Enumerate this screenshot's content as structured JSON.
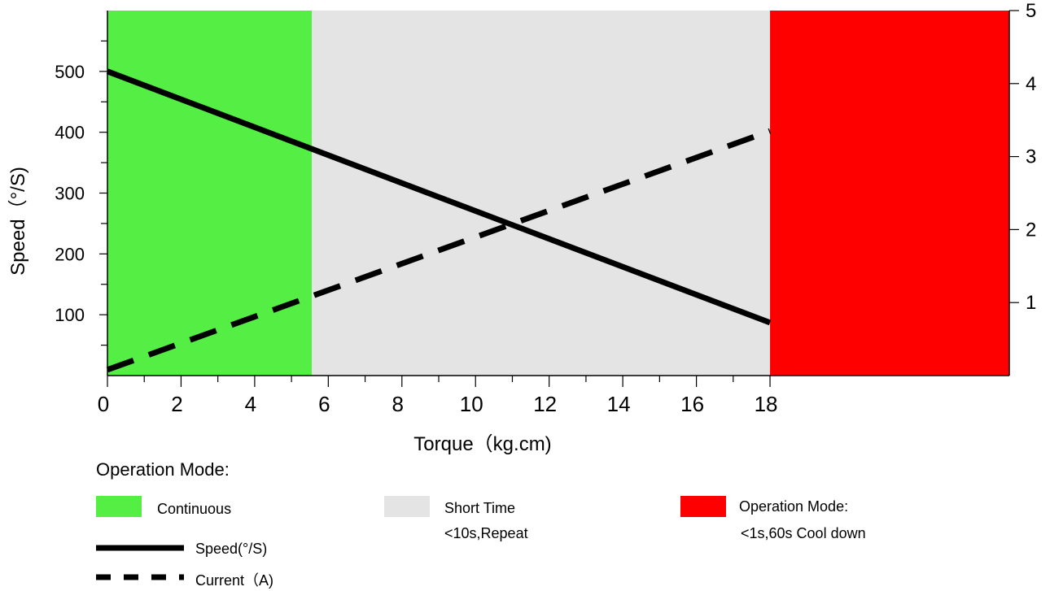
{
  "chart_data": {
    "type": "line",
    "xlabel": "Torque（kg.cm)",
    "ylabel": "Speed（°/S)",
    "x_ticks": [
      0,
      2,
      4,
      6,
      8,
      10,
      12,
      14,
      16,
      18
    ],
    "y_ticks": [
      100,
      200,
      300,
      400,
      500
    ],
    "y2_ticks": [
      1,
      2,
      3,
      4,
      5
    ],
    "xlim": [
      0,
      24.5
    ],
    "ylim": [
      0,
      600
    ],
    "y2lim": [
      0,
      5
    ],
    "regions": [
      {
        "name": "Continuous",
        "x_start": 0,
        "x_end": 5.55,
        "color": "#55ee44"
      },
      {
        "name": "Short Time",
        "x_start": 5.55,
        "x_end": 18,
        "color": "#e4e4e4"
      },
      {
        "name": "Operation Mode:",
        "x_start": 18,
        "x_end": 24.5,
        "color": "#ff0000"
      }
    ],
    "series": [
      {
        "name": "Speed(°/S)",
        "axis": "left",
        "style": "solid",
        "x": [
          0,
          18
        ],
        "y": [
          500,
          87
        ]
      },
      {
        "name": "Current（A)",
        "axis": "right",
        "style": "dashed",
        "x": [
          0,
          18
        ],
        "y": [
          0.08,
          3.35
        ]
      }
    ]
  },
  "legend": {
    "title": "Operation Mode:",
    "continuous": "Continuous",
    "short_time": "Short Time",
    "short_time_note": "<10s,Repeat",
    "operation_mode": "Operation Mode:",
    "operation_mode_note": "<1s,60s Cool down",
    "speed": "Speed(°/S)",
    "current": "Current（A)"
  }
}
